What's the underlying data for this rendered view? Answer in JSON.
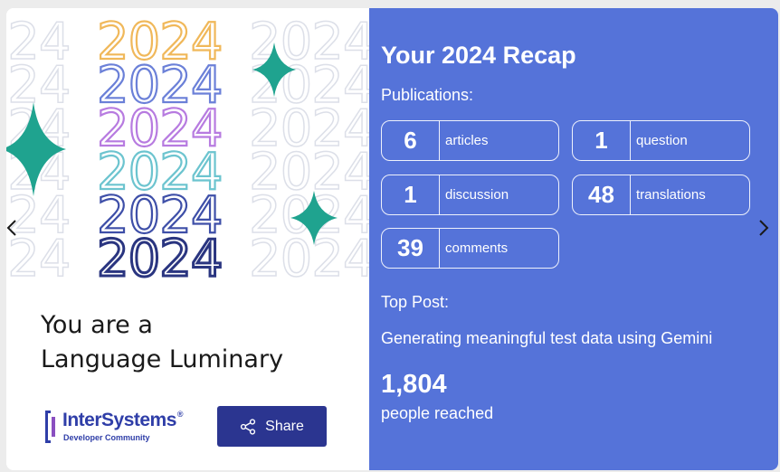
{
  "art": {
    "year_text": "2024",
    "colors": {
      "orange": "#f0b85a",
      "blue": "#6b80d8",
      "purple": "#b77be0",
      "teal": "#6cc4cf",
      "indigo": "#3e4fa8",
      "navy": "#2a3580",
      "faint": "#d8dbe6",
      "sparkle": "#1fa38f"
    }
  },
  "left": {
    "headline_line1": "You are a",
    "headline_line2": "Language Luminary",
    "logo_name": "InterSystems",
    "logo_reg": "®",
    "logo_sub": "Developer Community",
    "share_label": "Share"
  },
  "right": {
    "title": "Your 2024 Recap",
    "publications_label": "Publications:",
    "stats": [
      {
        "value": "6",
        "label": "articles"
      },
      {
        "value": "1",
        "label": "question"
      },
      {
        "value": "1",
        "label": "discussion"
      },
      {
        "value": "48",
        "label": "translations"
      },
      {
        "value": "39",
        "label": "comments"
      }
    ],
    "top_post_label": "Top Post:",
    "top_post_title": "Generating meaningful test data using Gemini",
    "reach_value": "1,804",
    "reach_label": "people reached"
  },
  "icons": {
    "prev": "chevron-left-icon",
    "next": "chevron-right-icon",
    "share": "share-icon",
    "sparkle": "sparkle-icon"
  }
}
